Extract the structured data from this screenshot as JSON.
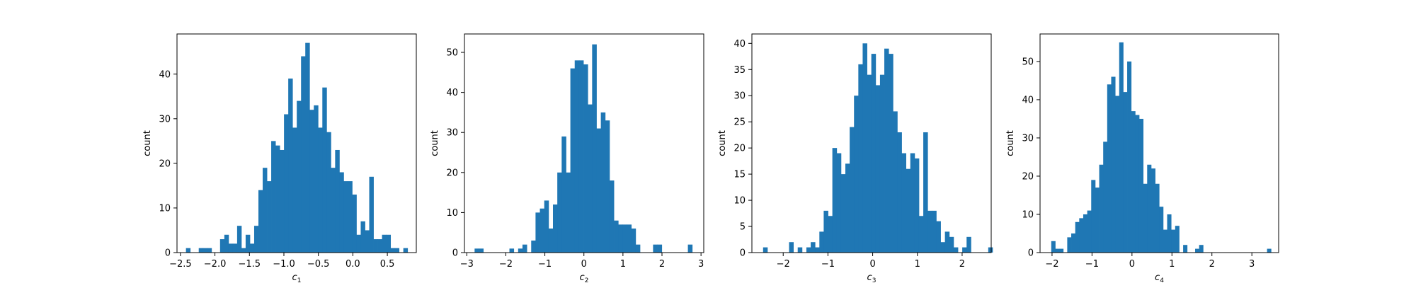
{
  "chart_data": [
    {
      "type": "histogram",
      "xlabel": "c",
      "xlabel_sub": "1",
      "ylabel": "count",
      "color": "#1f77b4",
      "xlim": [
        -2.55,
        0.92
      ],
      "ylim": [
        0,
        49
      ],
      "xticks": [
        -2.5,
        -2.0,
        -1.5,
        -1.0,
        -0.5,
        0.0,
        0.5
      ],
      "xtick_labels": [
        "−2.5",
        "−2.0",
        "−1.5",
        "−1.0",
        "−0.5",
        "0.0",
        "0.5"
      ],
      "yticks": [
        0,
        10,
        20,
        30,
        40
      ],
      "ytick_labels": [
        "0",
        "10",
        "20",
        "30",
        "40"
      ],
      "bin_start": -2.42,
      "bin_width": 0.0618,
      "counts": [
        1,
        0,
        0,
        1,
        1,
        1,
        0,
        0,
        3,
        4,
        2,
        2,
        6,
        1,
        4,
        2,
        6,
        14,
        19,
        16,
        25,
        24,
        23,
        31,
        39,
        28,
        34,
        44,
        47,
        32,
        33,
        28,
        37,
        27,
        19,
        23,
        18,
        16,
        16,
        13,
        4,
        7,
        5,
        17,
        3,
        3,
        4,
        4,
        1,
        1,
        0,
        1
      ]
    },
    {
      "type": "histogram",
      "xlabel": "c",
      "xlabel_sub": "2",
      "ylabel": "count",
      "color": "#1f77b4",
      "xlim": [
        -3.06,
        3.07
      ],
      "ylim": [
        0,
        54.6
      ],
      "xticks": [
        -3,
        -2,
        -1,
        0,
        1,
        2,
        3
      ],
      "xtick_labels": [
        "−3",
        "−2",
        "−1",
        "0",
        "1",
        "2",
        "3"
      ],
      "yticks": [
        0,
        10,
        20,
        30,
        40,
        50
      ],
      "ytick_labels": [
        "0",
        "10",
        "20",
        "30",
        "40",
        "50"
      ],
      "bin_start": -2.8,
      "bin_width": 0.1115,
      "counts": [
        1,
        1,
        0,
        0,
        0,
        0,
        0,
        0,
        1,
        0,
        1,
        2,
        0,
        3,
        10,
        11,
        13,
        6,
        12,
        20,
        29,
        20,
        46,
        48,
        48,
        47,
        37,
        52,
        31,
        35,
        33,
        18,
        8,
        7,
        7,
        7,
        6,
        2,
        0,
        0,
        0,
        2,
        2,
        0,
        0,
        0,
        0,
        0,
        0,
        2
      ]
    },
    {
      "type": "histogram",
      "xlabel": "c",
      "xlabel_sub": "3",
      "ylabel": "count",
      "color": "#1f77b4",
      "xlim": [
        -2.7,
        2.65
      ],
      "ylim": [
        0,
        41.8
      ],
      "xticks": [
        -2,
        -1,
        0,
        1,
        2
      ],
      "xtick_labels": [
        "−2",
        "−1",
        "0",
        "1",
        "2"
      ],
      "yticks": [
        0,
        5,
        10,
        15,
        20,
        25,
        30,
        35,
        40
      ],
      "ytick_labels": [
        "0",
        "5",
        "10",
        "15",
        "20",
        "25",
        "30",
        "35",
        "40"
      ],
      "bin_start": -2.45,
      "bin_width": 0.0968,
      "counts": [
        1,
        0,
        0,
        0,
        0,
        0,
        2,
        0,
        1,
        0,
        1,
        2,
        1,
        4,
        8,
        7,
        20,
        19,
        15,
        17,
        24,
        30,
        36,
        40,
        34,
        38,
        32,
        34,
        39,
        38,
        27,
        23,
        19,
        16,
        19,
        18,
        7,
        23,
        8,
        8,
        6,
        2,
        4,
        3,
        1,
        0,
        1,
        3,
        0,
        0,
        0,
        0,
        1
      ]
    },
    {
      "type": "histogram",
      "xlabel": "c",
      "xlabel_sub": "4",
      "ylabel": "count",
      "color": "#1f77b4",
      "xlim": [
        -2.3,
        3.67
      ],
      "ylim": [
        0,
        57.2
      ],
      "xticks": [
        -2,
        -1,
        0,
        1,
        2,
        3
      ],
      "xtick_labels": [
        "−2",
        "−1",
        "0",
        "1",
        "2",
        "3"
      ],
      "yticks": [
        0,
        10,
        20,
        30,
        40,
        50
      ],
      "ytick_labels": [
        "0",
        "10",
        "20",
        "30",
        "40",
        "50"
      ],
      "bin_start": -2.02,
      "bin_width": 0.1,
      "counts": [
        3,
        1,
        1,
        0,
        4,
        5,
        8,
        9,
        10,
        11,
        19,
        17,
        23,
        29,
        44,
        46,
        41,
        55,
        42,
        50,
        37,
        36,
        35,
        18,
        23,
        22,
        18,
        12,
        6,
        10,
        6,
        7,
        0,
        2,
        0,
        0,
        1,
        2,
        0,
        0,
        0,
        0,
        0,
        0,
        0,
        0,
        0,
        0,
        0,
        0,
        0,
        0,
        0,
        0,
        1
      ]
    }
  ]
}
